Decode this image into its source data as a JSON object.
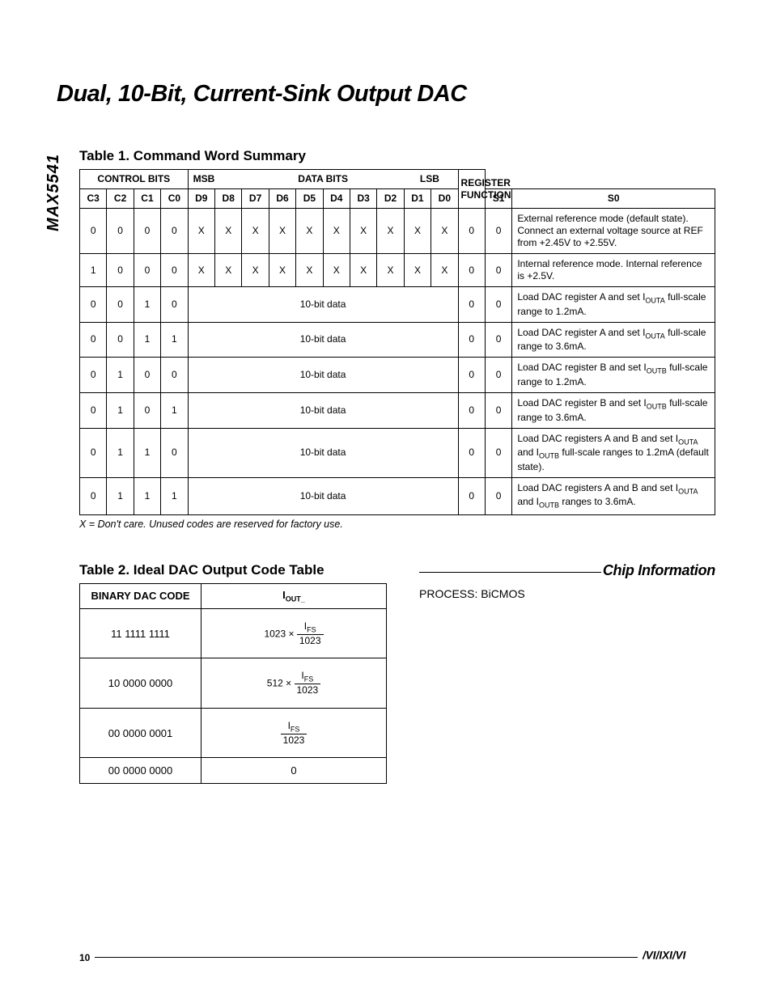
{
  "sidelabel": "MAX5541",
  "title": "Dual, 10-Bit, Current-Sink Output DAC",
  "table1_title": "Table 1. Command Word Summary",
  "table1": {
    "headers_top": {
      "control": "CONTROL BITS",
      "msb": "MSB",
      "data": "DATA BITS",
      "lsb": "LSB",
      "func": "REGISTER FUNCTION"
    },
    "headers_bits": [
      "C3",
      "C2",
      "C1",
      "C0",
      "D9",
      "D8",
      "D7",
      "D6",
      "D5",
      "D4",
      "D3",
      "D2",
      "D1",
      "D0",
      "S1",
      "S0"
    ],
    "rows": [
      {
        "bits": [
          "0",
          "0",
          "0",
          "0",
          "X",
          "X",
          "X",
          "X",
          "X",
          "X",
          "X",
          "X",
          "X",
          "X",
          "0",
          "0"
        ],
        "func": "External reference mode (default state). Connect an external voltage source at REF from +2.45V to +2.55V."
      },
      {
        "bits": [
          "1",
          "0",
          "0",
          "0",
          "X",
          "X",
          "X",
          "X",
          "X",
          "X",
          "X",
          "X",
          "X",
          "X",
          "0",
          "0"
        ],
        "func": "Internal reference mode. Internal reference is +2.5V."
      },
      {
        "bits": [
          "0",
          "0",
          "1",
          "0"
        ],
        "span": "10-bit data",
        "tail": [
          "0",
          "0"
        ],
        "func_html": "Load DAC register A and set I<span class='sub'>OUTA</span> full-scale range to 1.2mA."
      },
      {
        "bits": [
          "0",
          "0",
          "1",
          "1"
        ],
        "span": "10-bit data",
        "tail": [
          "0",
          "0"
        ],
        "func_html": "Load DAC register A and set I<span class='sub'>OUTA</span> full-scale range to 3.6mA."
      },
      {
        "bits": [
          "0",
          "1",
          "0",
          "0"
        ],
        "span": "10-bit data",
        "tail": [
          "0",
          "0"
        ],
        "func_html": "Load DAC register B and set I<span class='sub'>OUTB</span> full-scale range to 1.2mA."
      },
      {
        "bits": [
          "0",
          "1",
          "0",
          "1"
        ],
        "span": "10-bit data",
        "tail": [
          "0",
          "0"
        ],
        "func_html": "Load DAC register B and set I<span class='sub'>OUTB</span> full-scale range to 3.6mA."
      },
      {
        "bits": [
          "0",
          "1",
          "1",
          "0"
        ],
        "span": "10-bit data",
        "tail": [
          "0",
          "0"
        ],
        "func_html": "Load DAC registers A and B and set I<span class='sub'>OUTA</span> and I<span class='sub'>OUTB</span> full-scale ranges to 1.2mA (default state)."
      },
      {
        "bits": [
          "0",
          "1",
          "1",
          "1"
        ],
        "span": "10-bit data",
        "tail": [
          "0",
          "0"
        ],
        "func_html": "Load DAC registers A and B and set I<span class='sub'>OUTA</span> and I<span class='sub'>OUTB</span> ranges to 3.6mA."
      }
    ],
    "note": "X = Don't care. Unused codes are reserved for factory use."
  },
  "table2_title": "Table 2. Ideal DAC Output Code Table",
  "table2": {
    "headers": {
      "code": "BINARY DAC CODE",
      "iout": "I",
      "iout_sub": "OUT_"
    },
    "rows": [
      {
        "code": "11 1111 1111",
        "mult": "1023",
        "num_html": "I<span class='sub'>FS</span>",
        "den": "1023"
      },
      {
        "code": "10 0000 0000",
        "mult": "512",
        "num_html": "I<span class='sub'>FS</span>",
        "den": "1023"
      },
      {
        "code": "00 0000 0001",
        "num_html": "I<span class='sub'>FS</span>",
        "den": "1023"
      },
      {
        "code": "00 0000 0000",
        "plain": "0"
      }
    ]
  },
  "chip": {
    "title": "Chip Information",
    "body": "PROCESS: BiCMOS"
  },
  "footer": {
    "page": "10",
    "logo": "MAXIM"
  },
  "colors": {
    "text": "#000000",
    "bg": "#ffffff",
    "border": "#000000"
  },
  "typography": {
    "title_pt": 29,
    "subtitle_pt": 17,
    "body_pt": 12,
    "font": "Arial"
  }
}
